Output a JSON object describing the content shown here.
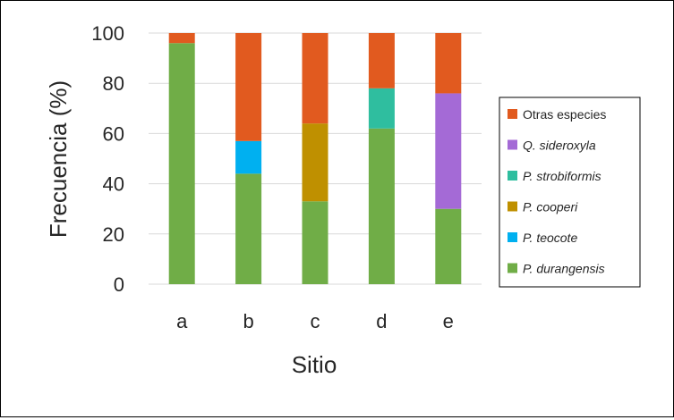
{
  "chart_data": {
    "type": "bar",
    "stacked": true,
    "title": "",
    "xlabel": "Sitio",
    "ylabel": "Frecuencia (%)",
    "categories": [
      "a",
      "b",
      "c",
      "d",
      "e"
    ],
    "ylim": [
      0,
      100
    ],
    "yticks": [
      "0",
      "20",
      "40",
      "60",
      "80",
      "100"
    ],
    "ytick_values": [
      0,
      20,
      40,
      60,
      80,
      100
    ],
    "grid": true,
    "legend_position": "right",
    "series": [
      {
        "name": "P. durangensis",
        "italic": true,
        "color": "#70ad47",
        "values": [
          96,
          44,
          33,
          62,
          30
        ]
      },
      {
        "name": "P. teocote",
        "italic": true,
        "color": "#00b0f0",
        "values": [
          0,
          13,
          0,
          0,
          0
        ]
      },
      {
        "name": "P. cooperi",
        "italic": true,
        "color": "#bf9000",
        "values": [
          0,
          0,
          31,
          0,
          0
        ]
      },
      {
        "name": "P. strobiformis",
        "italic": true,
        "color": "#2fbe9f",
        "values": [
          0,
          0,
          0,
          16,
          0
        ]
      },
      {
        "name": "Q. sideroxyla",
        "italic": true,
        "color": "#a46ad6",
        "values": [
          0,
          0,
          0,
          0,
          46
        ]
      },
      {
        "name": "Otras especies",
        "italic": false,
        "color": "#e15a1f",
        "values": [
          4,
          43,
          36,
          22,
          24
        ]
      }
    ]
  }
}
